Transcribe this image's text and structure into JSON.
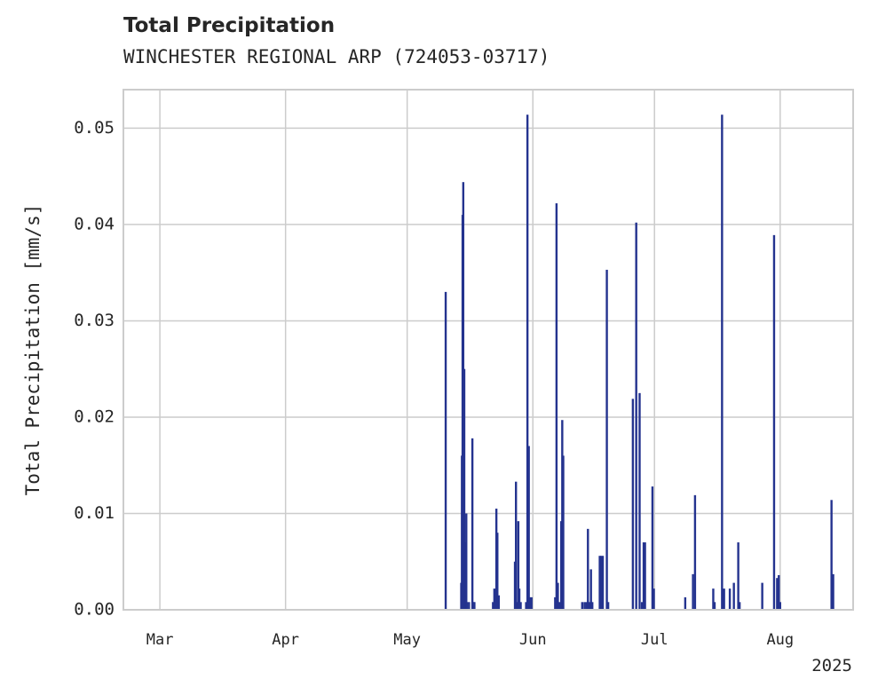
{
  "chart_data": {
    "type": "bar",
    "title": "Total Precipitation",
    "subtitle": "WINCHESTER REGIONAL ARP (724053-03717)",
    "xlabel": "",
    "ylabel": "Total Precipitation [mm/s]",
    "x_range": [
      "2025-02-20",
      "2025-08-19"
    ],
    "ylim": [
      0,
      0.054
    ],
    "grid": true,
    "legend": "none",
    "color": "#24338f",
    "y_ticks": [
      "0.00",
      "0.01",
      "0.02",
      "0.03",
      "0.04",
      "0.05"
    ],
    "x_ticks": [
      {
        "date": "2025-03-01",
        "label": "Mar"
      },
      {
        "date": "2025-04-01",
        "label": "Apr"
      },
      {
        "date": "2025-05-01",
        "label": "May"
      },
      {
        "date": "2025-06-01",
        "label": "Jun"
      },
      {
        "date": "2025-07-01",
        "label": "Jul"
      },
      {
        "date": "2025-08-01",
        "label": "Aug"
      }
    ],
    "x_year_label": "2025",
    "series": [
      {
        "x": [
          "2025-05-10T12:00",
          "2025-05-14T08:00",
          "2025-05-14T12:00",
          "2025-05-14T16:00",
          "2025-05-14T20:00",
          "2025-05-15T02:00",
          "2025-05-15T10:00",
          "2025-05-15T14:00",
          "2025-05-15T18:00",
          "2025-05-16T06:00",
          "2025-05-17T02:00",
          "2025-05-17T08:00",
          "2025-05-17T14:00",
          "2025-05-22T04:00",
          "2025-05-22T12:00",
          "2025-05-22T18:00",
          "2025-05-23T00:00",
          "2025-05-23T06:00",
          "2025-05-23T14:00",
          "2025-05-27T14:00",
          "2025-05-27T20:00",
          "2025-05-28T04:00",
          "2025-05-28T10:00",
          "2025-05-28T16:00",
          "2025-05-29T00:00",
          "2025-05-30T08:00",
          "2025-05-30T16:00",
          "2025-05-31T00:00",
          "2025-05-31T08:00",
          "2025-05-31T16:00",
          "2025-06-06T12:00",
          "2025-06-06T20:00",
          "2025-06-07T04:00",
          "2025-06-07T12:00",
          "2025-06-08T00:00",
          "2025-06-08T06:00",
          "2025-06-08T12:00",
          "2025-06-13T04:00",
          "2025-06-13T18:00",
          "2025-06-14T06:00",
          "2025-06-14T14:00",
          "2025-06-15T00:00",
          "2025-06-15T08:00",
          "2025-06-15T16:00",
          "2025-06-17T12:00",
          "2025-06-17T20:00",
          "2025-06-18T06:00",
          "2025-06-19T06:00",
          "2025-06-19T14:00",
          "2025-06-25T16:00",
          "2025-06-26T12:00",
          "2025-06-27T08:00",
          "2025-06-27T22:00",
          "2025-06-28T08:00",
          "2025-06-28T16:00",
          "2025-06-30T12:00",
          "2025-06-30T20:00",
          "2025-07-08T14:00",
          "2025-07-10T12:00",
          "2025-07-11T00:00",
          "2025-07-15T12:00",
          "2025-07-15T20:00",
          "2025-07-17T16:00",
          "2025-07-18T04:00",
          "2025-07-19T14:00",
          "2025-07-20T14:00",
          "2025-07-21T16:00",
          "2025-07-22T00:00",
          "2025-07-27T14:00",
          "2025-07-30T12:00",
          "2025-07-31T06:00",
          "2025-07-31T16:00",
          "2025-08-01T00:00",
          "2025-08-13T16:00",
          "2025-08-14T02:00"
        ],
        "values": [
          0.033,
          0.0028,
          0.016,
          0.041,
          0.0444,
          0.025,
          0.007,
          0.01,
          0.0008,
          0.0008,
          0.0178,
          0.0008,
          0.0008,
          0.0008,
          0.0022,
          0.0008,
          0.0105,
          0.008,
          0.0015,
          0.005,
          0.0133,
          0.0008,
          0.0092,
          0.0022,
          0.0008,
          0.0008,
          0.0514,
          0.017,
          0.0013,
          0.0013,
          0.0013,
          0.0422,
          0.0028,
          0.0008,
          0.0092,
          0.0197,
          0.016,
          0.0008,
          0.0008,
          0.0008,
          0.0084,
          0.0008,
          0.0042,
          0.0008,
          0.0056,
          0.0056,
          0.0056,
          0.0353,
          0.0008,
          0.0219,
          0.0402,
          0.0225,
          0.0008,
          0.007,
          0.007,
          0.0128,
          0.0022,
          0.0013,
          0.0037,
          0.0119,
          0.0022,
          0.0008,
          0.0514,
          0.0022,
          0.0022,
          0.0028,
          0.007,
          0.0008,
          0.0028,
          0.0389,
          0.0033,
          0.0036,
          0.0008,
          0.0114,
          0.0037
        ]
      }
    ]
  }
}
